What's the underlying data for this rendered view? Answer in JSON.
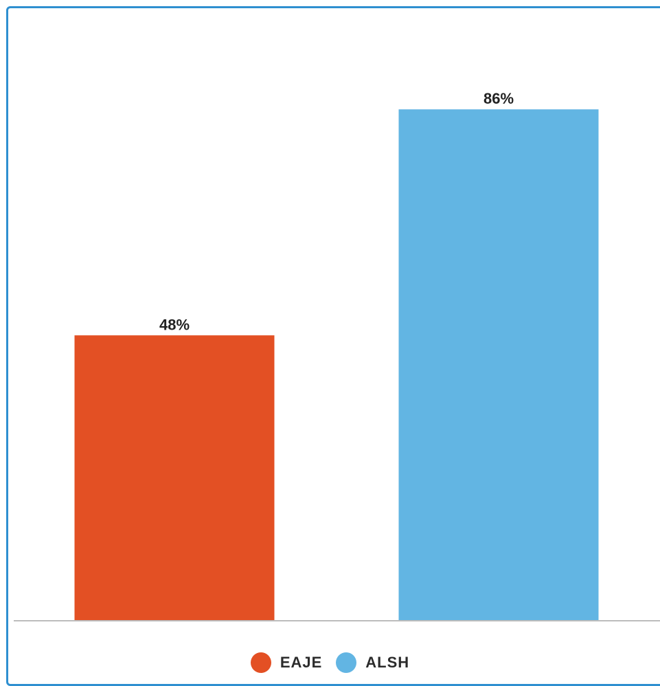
{
  "chart_data": {
    "type": "bar",
    "categories": [
      "EAJE",
      "ALSH"
    ],
    "values": [
      48,
      86
    ],
    "data_labels": [
      "48%",
      "86%"
    ],
    "colors": [
      "#e35024",
      "#62b5e3"
    ],
    "ylim": [
      0,
      100
    ],
    "title": "",
    "xlabel": "",
    "ylabel": "",
    "grid": false,
    "legend_position": "bottom-center",
    "legend": [
      {
        "label": "EAJE",
        "color": "#e35024"
      },
      {
        "label": "ALSH",
        "color": "#62b5e3"
      }
    ]
  },
  "colors": {
    "border": "#2e8fd0",
    "baseline": "#bcbcbc"
  }
}
